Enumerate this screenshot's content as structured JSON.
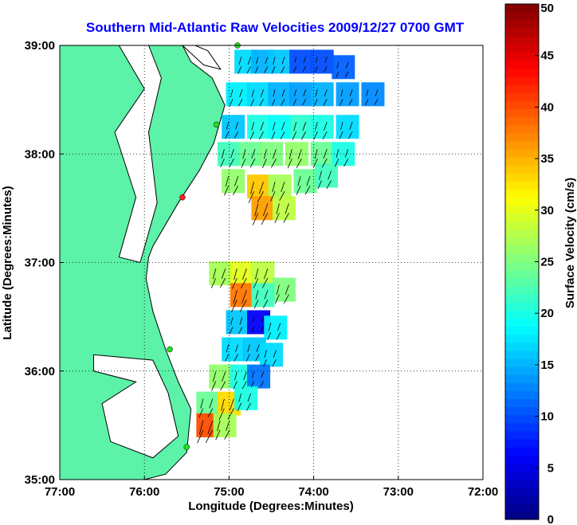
{
  "chart_data": {
    "type": "heatmap",
    "title": "Southern Mid-Atlantic Raw Velocities 2009/12/27 0700 GMT",
    "xlabel": "Longitude (Degrees:Minutes)",
    "ylabel": "Latitude (Degrees:Minutes)",
    "x_ticks": [
      "77:00",
      "76:00",
      "75:00",
      "74:00",
      "73:00",
      "72:00"
    ],
    "x_tick_values": [
      -77,
      -76,
      -75,
      -74,
      -73,
      -72
    ],
    "y_ticks": [
      "39:00",
      "38:00",
      "37:00",
      "36:00",
      "35:00"
    ],
    "y_tick_values": [
      39,
      38,
      37,
      36,
      35
    ],
    "xlim": [
      -77,
      -72
    ],
    "ylim": [
      35,
      39
    ],
    "grid": true,
    "colorbar": {
      "label": "Surface Velocity (cm/s)",
      "ticks": [
        "0",
        "5",
        "10",
        "15",
        "20",
        "25",
        "30",
        "35",
        "40",
        "45",
        "50"
      ],
      "range": [
        0,
        50
      ],
      "colormap": "jet"
    },
    "land_color": "#5cf2a8",
    "regions": [
      {
        "name": "northern-coverage",
        "cells": [
          {
            "lon": -74.8,
            "lat": 38.85,
            "v": 17
          },
          {
            "lon": -74.6,
            "lat": 38.85,
            "v": 15
          },
          {
            "lon": -74.4,
            "lat": 38.85,
            "v": 16
          },
          {
            "lon": -74.15,
            "lat": 38.85,
            "v": 10
          },
          {
            "lon": -73.9,
            "lat": 38.85,
            "v": 10
          },
          {
            "lon": -73.65,
            "lat": 38.8,
            "v": 11
          },
          {
            "lon": -74.9,
            "lat": 38.55,
            "v": 18
          },
          {
            "lon": -74.65,
            "lat": 38.55,
            "v": 17
          },
          {
            "lon": -74.4,
            "lat": 38.55,
            "v": 15
          },
          {
            "lon": -74.15,
            "lat": 38.55,
            "v": 14
          },
          {
            "lon": -73.9,
            "lat": 38.55,
            "v": 15
          },
          {
            "lon": -73.6,
            "lat": 38.55,
            "v": 14
          },
          {
            "lon": -73.3,
            "lat": 38.55,
            "v": 13
          },
          {
            "lon": -74.95,
            "lat": 38.25,
            "v": 16
          },
          {
            "lon": -74.65,
            "lat": 38.25,
            "v": 20
          },
          {
            "lon": -74.4,
            "lat": 38.25,
            "v": 19
          },
          {
            "lon": -74.15,
            "lat": 38.25,
            "v": 21
          },
          {
            "lon": -73.9,
            "lat": 38.25,
            "v": 20
          },
          {
            "lon": -73.6,
            "lat": 38.25,
            "v": 17
          },
          {
            "lon": -75.0,
            "lat": 38.0,
            "v": 22
          },
          {
            "lon": -74.75,
            "lat": 38.0,
            "v": 24
          },
          {
            "lon": -74.5,
            "lat": 38.0,
            "v": 25
          },
          {
            "lon": -74.2,
            "lat": 38.0,
            "v": 26
          },
          {
            "lon": -73.9,
            "lat": 38.0,
            "v": 24
          },
          {
            "lon": -73.65,
            "lat": 38.0,
            "v": 20
          },
          {
            "lon": -74.95,
            "lat": 37.75,
            "v": 26
          },
          {
            "lon": -74.65,
            "lat": 37.7,
            "v": 34
          },
          {
            "lon": -74.4,
            "lat": 37.7,
            "v": 27
          },
          {
            "lon": -74.1,
            "lat": 37.75,
            "v": 24
          },
          {
            "lon": -73.85,
            "lat": 37.8,
            "v": 22
          },
          {
            "lon": -74.6,
            "lat": 37.5,
            "v": 36
          },
          {
            "lon": -74.35,
            "lat": 37.5,
            "v": 28
          }
        ]
      },
      {
        "name": "southern-coverage",
        "cells": [
          {
            "lon": -75.1,
            "lat": 36.9,
            "v": 27
          },
          {
            "lon": -74.85,
            "lat": 36.9,
            "v": 30
          },
          {
            "lon": -74.6,
            "lat": 36.9,
            "v": 28
          },
          {
            "lon": -74.35,
            "lat": 36.75,
            "v": 25
          },
          {
            "lon": -74.85,
            "lat": 36.7,
            "v": 38
          },
          {
            "lon": -74.6,
            "lat": 36.7,
            "v": 22
          },
          {
            "lon": -74.9,
            "lat": 36.45,
            "v": 16
          },
          {
            "lon": -74.65,
            "lat": 36.45,
            "v": 6
          },
          {
            "lon": -74.45,
            "lat": 36.4,
            "v": 18
          },
          {
            "lon": -74.95,
            "lat": 36.2,
            "v": 17
          },
          {
            "lon": -74.7,
            "lat": 36.2,
            "v": 16
          },
          {
            "lon": -74.5,
            "lat": 36.15,
            "v": 17
          },
          {
            "lon": -75.1,
            "lat": 35.95,
            "v": 26
          },
          {
            "lon": -74.85,
            "lat": 35.95,
            "v": 20
          },
          {
            "lon": -74.65,
            "lat": 35.95,
            "v": 12
          },
          {
            "lon": -75.25,
            "lat": 35.7,
            "v": 24
          },
          {
            "lon": -75.0,
            "lat": 35.7,
            "v": 33
          },
          {
            "lon": -74.8,
            "lat": 35.75,
            "v": 20
          },
          {
            "lon": -75.25,
            "lat": 35.5,
            "v": 40
          },
          {
            "lon": -75.05,
            "lat": 35.5,
            "v": 27
          }
        ]
      }
    ],
    "radar_sites": [
      {
        "lon": -74.9,
        "lat": 39.0
      },
      {
        "lon": -75.15,
        "lat": 38.27
      },
      {
        "lon": -75.55,
        "lat": 37.6,
        "status": "red"
      },
      {
        "lon": -75.7,
        "lat": 36.2
      },
      {
        "lon": -75.5,
        "lat": 35.3
      }
    ]
  }
}
